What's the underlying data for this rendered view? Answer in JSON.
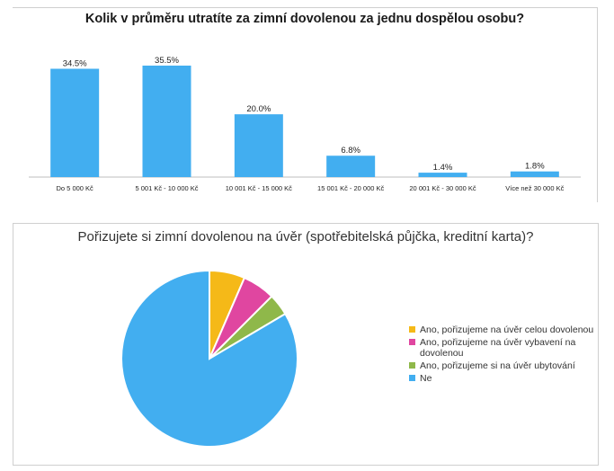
{
  "chart_data": [
    {
      "type": "bar",
      "title": "Kolik v průměru utratíte za zimní dovolenou za jednu dospělou osobu?",
      "categories": [
        "Do 5 000 Kč",
        "5 001 Kč - 10 000 Kč",
        "10 001 Kč - 15 000 Kč",
        "15 001 Kč - 20 000 Kč",
        "20 001 Kč - 30 000 Kč",
        "Více než 30 000 Kč"
      ],
      "values": [
        34.5,
        35.5,
        20.0,
        6.8,
        1.4,
        1.8
      ],
      "data_labels": [
        "34.5%",
        "35.5%",
        "20.0%",
        "6.8%",
        "1.4%",
        "1.8%"
      ],
      "color": "#42aef0",
      "ylim": [
        0,
        35.5
      ],
      "grid": false
    },
    {
      "type": "pie",
      "title": "Pořizujete si zimní dovolenou na úvěr (spotřebitelská půjčka, kreditní karta)?",
      "labels": [
        "Ano, pořizujeme na úvěr celou dovolenou",
        "Ano, pořizujeme na úvěr vybavení na dovolenou",
        "Ano, pořizujeme si na úvěr ubytování",
        "Ne"
      ],
      "values": [
        6.5,
        6.0,
        4.0,
        83.5
      ],
      "colors": [
        "#f5b918",
        "#e046a0",
        "#8fb84a",
        "#42aef0"
      ],
      "legend_position": "right"
    }
  ]
}
